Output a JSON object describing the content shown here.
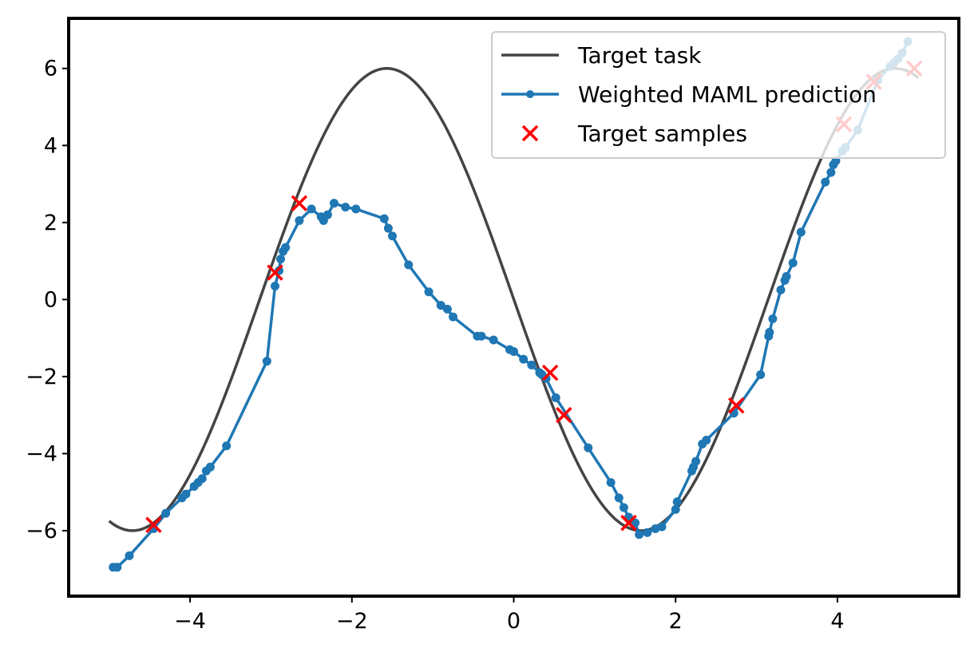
{
  "chart_data": {
    "type": "line",
    "title": "",
    "xlabel": "",
    "ylabel": "",
    "xlim": [
      -5.5,
      5.5
    ],
    "ylim": [
      -7.7,
      7.3
    ],
    "xticks": [
      -4,
      -2,
      0,
      2,
      4
    ],
    "xtick_labels": [
      "−4",
      "−2",
      "0",
      "2",
      "4"
    ],
    "yticks": [
      -6,
      -4,
      -2,
      0,
      2,
      4,
      6
    ],
    "ytick_labels": [
      "−6",
      "−4",
      "−2",
      "0",
      "2",
      "4",
      "6"
    ],
    "grid": false,
    "legend_position": "top-right",
    "series": [
      {
        "name": "Target task",
        "kind": "line",
        "color": "#444444",
        "function": "6*sin(x + 3.14)",
        "x_range": [
          -5.0,
          5.0
        ]
      },
      {
        "name": "Weighted MAML prediction",
        "kind": "line-marker",
        "color": "#1f77b4",
        "x": [
          -4.95,
          -4.9,
          -4.75,
          -4.45,
          -4.3,
          -4.1,
          -4.05,
          -3.95,
          -3.9,
          -3.85,
          -3.8,
          -3.75,
          -3.55,
          -3.05,
          -2.95,
          -2.9,
          -2.88,
          -2.85,
          -2.82,
          -2.65,
          -2.5,
          -2.38,
          -2.35,
          -2.3,
          -2.22,
          -2.08,
          -1.95,
          -1.6,
          -1.55,
          -1.5,
          -1.3,
          -1.05,
          -0.9,
          -0.82,
          -0.75,
          -0.45,
          -0.4,
          -0.25,
          -0.05,
          0.0,
          0.12,
          0.22,
          0.32,
          0.35,
          0.4,
          0.52,
          0.92,
          1.2,
          1.3,
          1.36,
          1.42,
          1.5,
          1.55,
          1.65,
          1.75,
          1.83,
          2.0,
          2.02,
          2.2,
          2.22,
          2.25,
          2.33,
          2.38,
          2.72,
          3.05,
          3.15,
          3.16,
          3.2,
          3.3,
          3.35,
          3.37,
          3.45,
          3.55,
          3.85,
          3.92,
          3.95,
          3.98,
          4.06,
          4.1,
          4.25,
          4.5,
          4.65,
          4.7,
          4.75,
          4.8,
          4.87
        ],
        "y": [
          -6.95,
          -6.95,
          -6.65,
          -5.95,
          -5.55,
          -5.15,
          -5.05,
          -4.85,
          -4.75,
          -4.65,
          -4.45,
          -4.35,
          -3.8,
          -1.6,
          0.35,
          0.75,
          1.05,
          1.25,
          1.35,
          2.05,
          2.35,
          2.15,
          2.05,
          2.2,
          2.5,
          2.4,
          2.35,
          2.1,
          1.85,
          1.65,
          0.9,
          0.2,
          -0.15,
          -0.25,
          -0.45,
          -0.95,
          -0.95,
          -1.05,
          -1.3,
          -1.35,
          -1.55,
          -1.7,
          -1.9,
          -1.95,
          -2.05,
          -2.55,
          -3.85,
          -4.75,
          -5.15,
          -5.4,
          -5.65,
          -5.8,
          -6.1,
          -6.05,
          -5.95,
          -5.9,
          -5.45,
          -5.25,
          -4.45,
          -4.35,
          -4.2,
          -3.75,
          -3.65,
          -2.95,
          -1.95,
          -0.95,
          -0.85,
          -0.5,
          0.25,
          0.5,
          0.6,
          0.95,
          1.75,
          3.05,
          3.3,
          3.5,
          3.6,
          3.85,
          3.95,
          4.4,
          5.7,
          6.05,
          6.15,
          6.25,
          6.4,
          6.7
        ]
      },
      {
        "name": "Target samples",
        "kind": "scatter",
        "marker": "x",
        "color": "#ff0000",
        "x": [
          -4.45,
          -2.95,
          -2.65,
          0.45,
          0.62,
          1.42,
          2.75,
          4.08,
          4.45,
          4.95
        ],
        "y": [
          -5.85,
          0.7,
          2.5,
          -1.9,
          -3.0,
          -5.8,
          -2.75,
          4.55,
          5.65,
          6.0
        ]
      }
    ]
  }
}
